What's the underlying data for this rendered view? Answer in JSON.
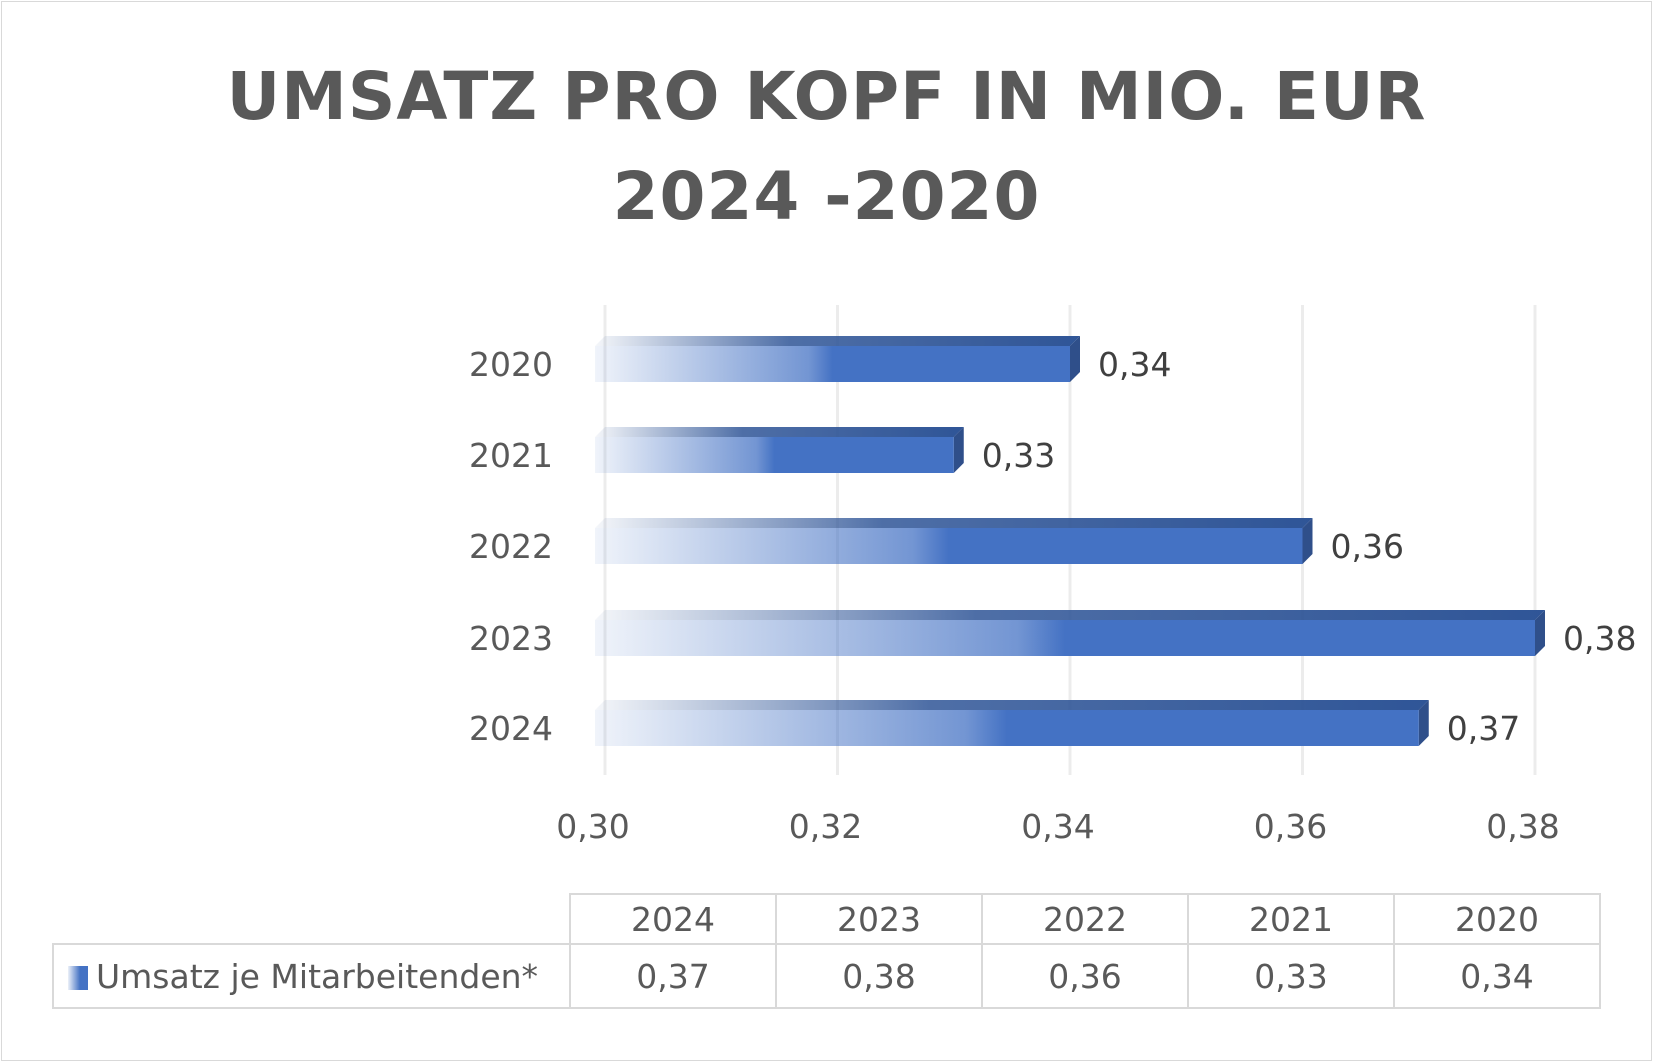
{
  "chart_data": {
    "type": "bar",
    "orientation": "horizontal",
    "title": "UMSATZ PRO KOPF IN MIO. EUR",
    "subtitle": "2024 -2020",
    "categories": [
      "2020",
      "2021",
      "2022",
      "2023",
      "2024"
    ],
    "series": [
      {
        "name": "Umsatz je Mitarbeitenden*",
        "values": [
          0.34,
          0.33,
          0.36,
          0.38,
          0.37
        ],
        "color": "#4472c4"
      }
    ],
    "data_labels": [
      "0,34",
      "0,33",
      "0,36",
      "0,38",
      "0,37"
    ],
    "xlim": [
      0.3,
      0.38
    ],
    "x_ticks": [
      "0,30",
      "0,32",
      "0,34",
      "0,36",
      "0,38"
    ],
    "grid": true,
    "data_table": {
      "columns": [
        "2024",
        "2023",
        "2022",
        "2021",
        "2020"
      ],
      "row_label": "Umsatz je Mitarbeitenden*",
      "values": [
        "0,37",
        "0,38",
        "0,36",
        "0,33",
        "0,34"
      ]
    }
  }
}
